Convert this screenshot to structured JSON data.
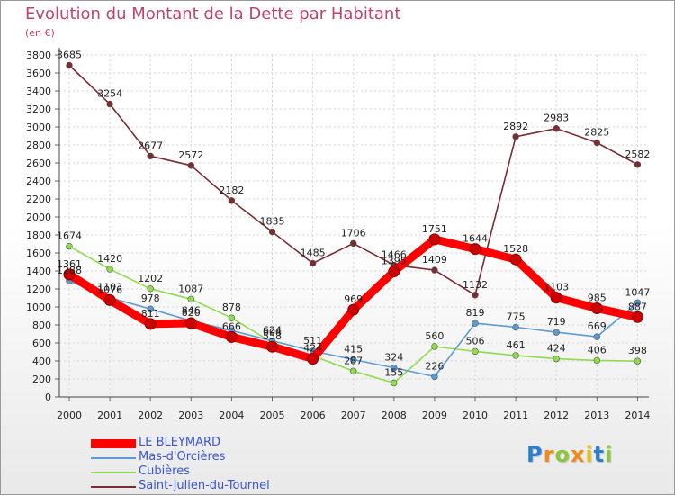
{
  "chart_data": {
    "type": "line",
    "title": "Evolution du Montant de la Dette par Habitant",
    "subtitle": "(en €)",
    "x": [
      "2000",
      "2001",
      "2002",
      "2003",
      "2004",
      "2005",
      "2006",
      "2007",
      "2008",
      "2009",
      "2010",
      "2011",
      "2012",
      "2013",
      "2014"
    ],
    "ylim": [
      0,
      3800
    ],
    "yticks": [
      0,
      200,
      400,
      600,
      800,
      1000,
      1200,
      1400,
      1600,
      1800,
      2000,
      2200,
      2400,
      2600,
      2800,
      3000,
      3200,
      3400,
      3600,
      3800
    ],
    "grid": true,
    "legend_position": "bottom-left",
    "series": [
      {
        "name": "LE BLEYMARD",
        "color": "#ff0000",
        "values": [
          1361,
          1076,
          811,
          820,
          666,
          558,
          424,
          969,
          1395,
          1751,
          1644,
          1528,
          1103,
          985,
          887
        ],
        "labels": [
          "1361",
          "1076",
          "811",
          "820",
          "666",
          "558",
          "424",
          "969",
          "1395",
          "1751",
          "1644",
          "1528",
          "1103",
          "985",
          "887"
        ]
      },
      {
        "name": "Mas-d'Orcières",
        "color": "#5b9bd5",
        "values": [
          1288,
          1103,
          978,
          846,
          738,
          624,
          511,
          415,
          324,
          226,
          819,
          775,
          719,
          669,
          1047
        ],
        "labels": [
          "1288",
          "1103",
          "978",
          "846",
          "",
          "624",
          "511",
          "415",
          "324",
          "226",
          "819",
          "775",
          "719",
          "669",
          "1047"
        ]
      },
      {
        "name": "Cubières",
        "color": "#8fdc4e",
        "values": [
          1674,
          1420,
          1202,
          1087,
          878,
          604,
          458,
          287,
          155,
          560,
          506,
          461,
          424,
          406,
          398
        ],
        "labels": [
          "1674",
          "1420",
          "1202",
          "1087",
          "878",
          "604",
          "",
          "287",
          "155",
          "560",
          "506",
          "461",
          "424",
          "406",
          "398"
        ]
      },
      {
        "name": "Saint-Julien-du-Tournel",
        "color": "#7a2c32",
        "values": [
          3685,
          3254,
          2677,
          2572,
          2182,
          1835,
          1485,
          1706,
          1466,
          1409,
          1132,
          2892,
          2983,
          2825,
          2582
        ],
        "labels": [
          "3685",
          "3254",
          "2677",
          "2572",
          "2182",
          "1835",
          "1485",
          "1706",
          "1466",
          "1409",
          "1132",
          "2892",
          "2983",
          "2825",
          "2582"
        ]
      }
    ]
  },
  "logo": {
    "letters": [
      "P",
      "r",
      "o",
      "x",
      "i",
      "t",
      "i"
    ],
    "colors": [
      "#2e7dd1",
      "#f08a1c",
      "#8cc63f",
      "#f08a1c",
      "#e8c21b",
      "#2e7dd1",
      "#8cc63f"
    ]
  }
}
